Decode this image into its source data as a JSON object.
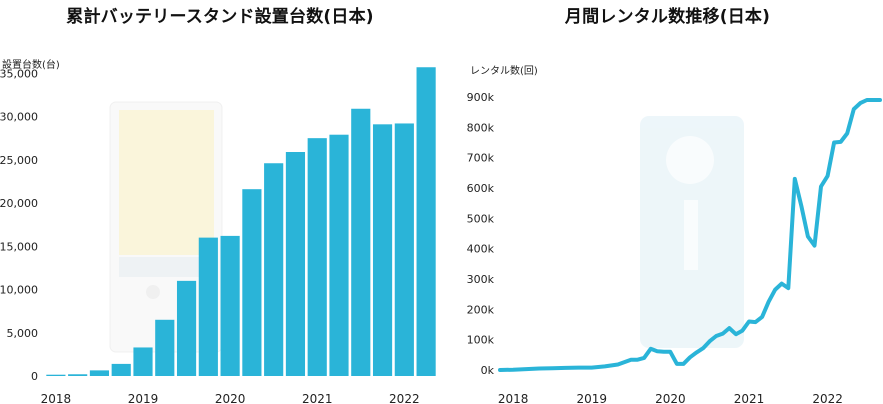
{
  "chart_data": [
    {
      "type": "bar",
      "title": "累計バッテリースタンド設置台数(日本)",
      "ylabel": "設置台数(台)",
      "ylim": [
        0,
        37000
      ],
      "yticks": [
        0,
        5000,
        10000,
        15000,
        20000,
        25000,
        30000,
        35000
      ],
      "ytick_labels": [
        "0",
        "5,000",
        "10,000",
        "15,000",
        "20,000",
        "25,000",
        "30,000",
        "35,000"
      ],
      "x_year_labels": [
        "2018",
        "2019",
        "2020",
        "2021",
        "2022"
      ],
      "x_year_label_bar_index": [
        0,
        4,
        8,
        12,
        16
      ],
      "bar_color": "#2ab4d8",
      "values": [
        150,
        200,
        650,
        1400,
        3300,
        6500,
        11000,
        16000,
        16200,
        21600,
        24600,
        25900,
        27500,
        27900,
        30900,
        29100,
        29200,
        35700
      ],
      "grid": false,
      "legend": "none"
    },
    {
      "type": "line",
      "title": "月間レンタル数推移(日本)",
      "ylabel": "レンタル数(回)",
      "ylim": [
        0,
        900000
      ],
      "yticks": [
        0,
        100000,
        200000,
        300000,
        400000,
        500000,
        600000,
        700000,
        800000,
        900000
      ],
      "ytick_labels": [
        "0k",
        "100k",
        "200k",
        "300k",
        "400k",
        "500k",
        "600k",
        "700k",
        "800k",
        "900k"
      ],
      "x_year_labels": [
        "2018",
        "2019",
        "2020",
        "2021",
        "2022"
      ],
      "x_year_label_positions": [
        0,
        12,
        24,
        36,
        48
      ],
      "x_range": [
        -2,
        56
      ],
      "line_color": "#2ab4d8",
      "x": [
        -2,
        0,
        2,
        4,
        6,
        8,
        10,
        12,
        14,
        16,
        18,
        19,
        20,
        21,
        22,
        23,
        24,
        25,
        26,
        27,
        28,
        29,
        30,
        31,
        32,
        33,
        34,
        35,
        36,
        37,
        38,
        39,
        40,
        41,
        42,
        43,
        44,
        45,
        46,
        47,
        48,
        49,
        50,
        51,
        52,
        53,
        54,
        55,
        56
      ],
      "values": [
        0,
        1000,
        3000,
        5000,
        6000,
        7000,
        8000,
        8000,
        12000,
        18000,
        34000,
        34000,
        40000,
        70000,
        62000,
        60000,
        60000,
        20000,
        20000,
        42000,
        58000,
        72000,
        95000,
        112000,
        120000,
        138000,
        118000,
        130000,
        160000,
        158000,
        175000,
        225000,
        265000,
        285000,
        270000,
        630000,
        540000,
        440000,
        410000,
        605000,
        640000,
        750000,
        752000,
        780000,
        860000,
        880000,
        890000,
        890000,
        890000
      ],
      "grid": false,
      "legend": "none"
    }
  ]
}
